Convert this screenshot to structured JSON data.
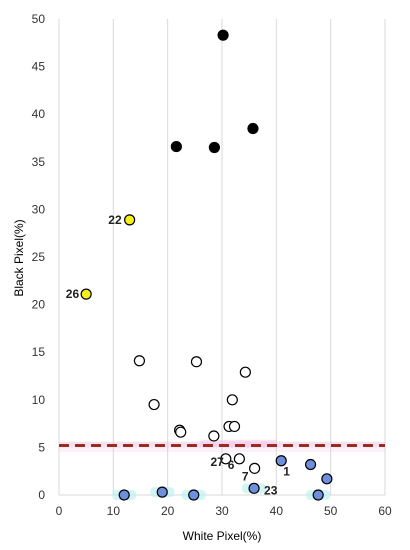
{
  "chart_data": {
    "type": "scatter",
    "xlabel": "White Pixel(%)",
    "ylabel": "Black Pixel(%)",
    "xlim": [
      0,
      60
    ],
    "ylim": [
      0,
      50
    ],
    "x_ticks": [
      0,
      10,
      20,
      30,
      40,
      50,
      60
    ],
    "y_ticks": [
      0,
      5,
      10,
      15,
      20,
      25,
      30,
      35,
      40,
      45,
      50
    ],
    "grid": "vertical",
    "threshold": {
      "y": 5.2,
      "style": "dashed",
      "color": "#9b2c22"
    },
    "band_color": "#f4c6e8",
    "series": [
      {
        "fill": "#000000",
        "points": [
          {
            "x": 30.2,
            "y": 48.3
          },
          {
            "x": 21.6,
            "y": 36.6
          },
          {
            "x": 28.6,
            "y": 36.5
          },
          {
            "x": 35.7,
            "y": 38.5
          }
        ]
      },
      {
        "fill": "#f4f01c",
        "points": [
          {
            "x": 13.0,
            "y": 28.9,
            "label": "22"
          },
          {
            "x": 5.0,
            "y": 21.1,
            "label": "26"
          }
        ]
      },
      {
        "fill": "#ffffff",
        "points": [
          {
            "x": 14.8,
            "y": 14.1
          },
          {
            "x": 25.3,
            "y": 14.0
          },
          {
            "x": 34.3,
            "y": 12.9
          },
          {
            "x": 17.5,
            "y": 9.5
          },
          {
            "x": 31.9,
            "y": 10.0
          },
          {
            "x": 22.2,
            "y": 6.8
          },
          {
            "x": 22.4,
            "y": 6.6
          },
          {
            "x": 31.3,
            "y": 7.2
          },
          {
            "x": 32.3,
            "y": 7.2
          },
          {
            "x": 28.5,
            "y": 6.2
          },
          {
            "x": 30.7,
            "y": 3.8,
            "label": "27"
          },
          {
            "x": 33.2,
            "y": 3.8,
            "label": "6"
          },
          {
            "x": 36.0,
            "y": 2.8,
            "label": "7"
          }
        ]
      },
      {
        "fill": "#6f8fdc",
        "points": [
          {
            "x": 40.9,
            "y": 3.6,
            "label": "1"
          },
          {
            "x": 46.3,
            "y": 3.2
          },
          {
            "x": 49.3,
            "y": 1.7
          },
          {
            "x": 35.9,
            "y": 0.7,
            "label": "23"
          },
          {
            "x": 12.0,
            "y": 0.0
          },
          {
            "x": 19.0,
            "y": 0.3
          },
          {
            "x": 24.8,
            "y": 0.0
          },
          {
            "x": 47.7,
            "y": 0.0
          }
        ]
      }
    ]
  }
}
